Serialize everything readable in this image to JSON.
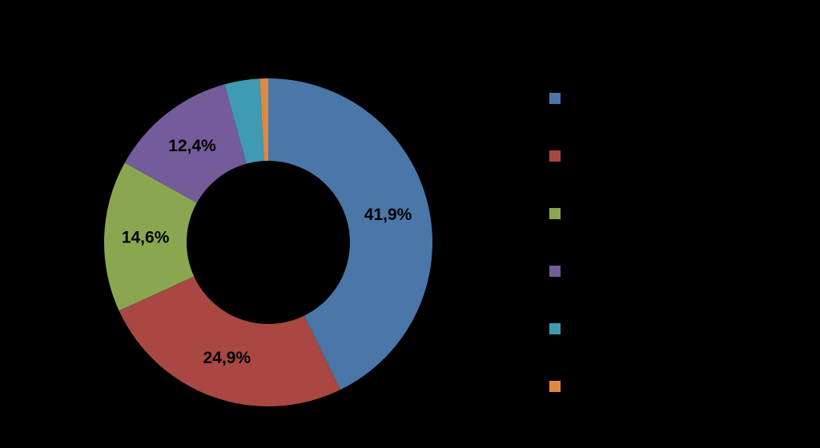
{
  "chart_data": {
    "type": "pie",
    "donut": true,
    "labels_visible": [
      "41,9%",
      "24,9%",
      "14,6%",
      "12,4%",
      "",
      ""
    ],
    "values": [
      41.9,
      24.9,
      14.6,
      12.4,
      3.4,
      0.8
    ],
    "colors": [
      "#4a76a8",
      "#a94743",
      "#8ba651",
      "#735c99",
      "#3f9bb3",
      "#dd8843"
    ],
    "legend": {
      "position": "right",
      "entries": [
        "",
        "",
        "",
        "",
        "",
        ""
      ]
    },
    "background": "#000000"
  }
}
